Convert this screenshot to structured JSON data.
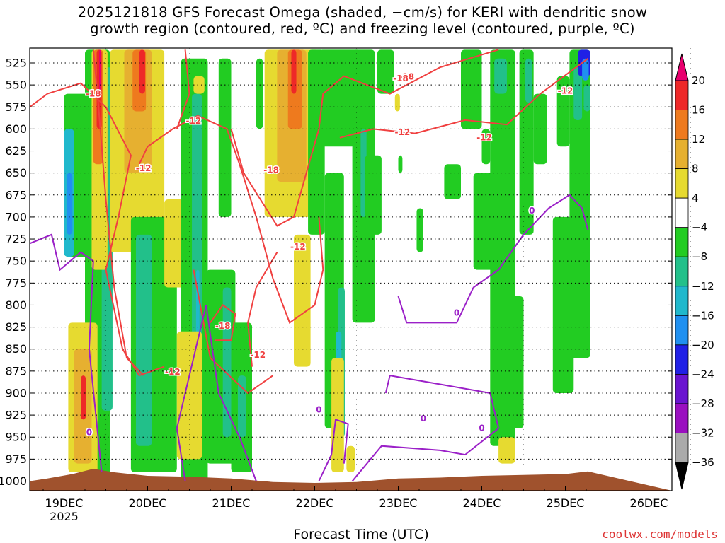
{
  "chart_data": {
    "type": "heatmap",
    "title": "2025121818 GFS Forecast Omega (shaded, −cm/s) for KERI with dendritic snow\ngrowth region (contoured, red, ºC) and freezing level (contoured, purple, ºC)",
    "xlabel": "Forecast Time (UTC)",
    "ylabel": "",
    "x_ticks": [
      "19DEC",
      "20DEC",
      "21DEC",
      "22DEC",
      "23DEC",
      "24DEC",
      "25DEC",
      "26DEC"
    ],
    "x_sublabel": "2025",
    "y_ticks": [
      525,
      550,
      575,
      600,
      625,
      650,
      675,
      700,
      725,
      750,
      775,
      800,
      825,
      850,
      875,
      900,
      925,
      950,
      975,
      1000
    ],
    "ylim": [
      1000,
      510
    ],
    "colorbar": {
      "tick_labels": [
        "20",
        "16",
        "12",
        "8",
        "4",
        "−4",
        "−8",
        "−12",
        "−16",
        "−20",
        "−24",
        "−28",
        "−32",
        "−36"
      ],
      "colors": [
        "#e8006e",
        "#ee2828",
        "#ee7a1e",
        "#e6b030",
        "#e6da30",
        "#ffffff",
        "#22cc22",
        "#22c08a",
        "#20b8cc",
        "#2090f0",
        "#2020e6",
        "#6a14d0",
        "#9a10c0",
        "#aaaaaa",
        "#000000"
      ]
    },
    "contour_labels": {
      "red": [
        "-18",
        "-12",
        "-12",
        "-18",
        "-12",
        "-18",
        "-12",
        "-18",
        "-12",
        "-12",
        "-18",
        "-12",
        "-12"
      ],
      "purple": [
        "0",
        "0",
        "0",
        "0",
        "0",
        "0"
      ]
    },
    "series": [
      {
        "name": "omega shaded",
        "units": "-cm/s"
      },
      {
        "name": "dendritic snow growth region",
        "units": "ºC",
        "color": "#f04040"
      },
      {
        "name": "freezing level",
        "units": "ºC",
        "color": "#9b20c8"
      }
    ]
  },
  "credit": "coolwx.com/models"
}
